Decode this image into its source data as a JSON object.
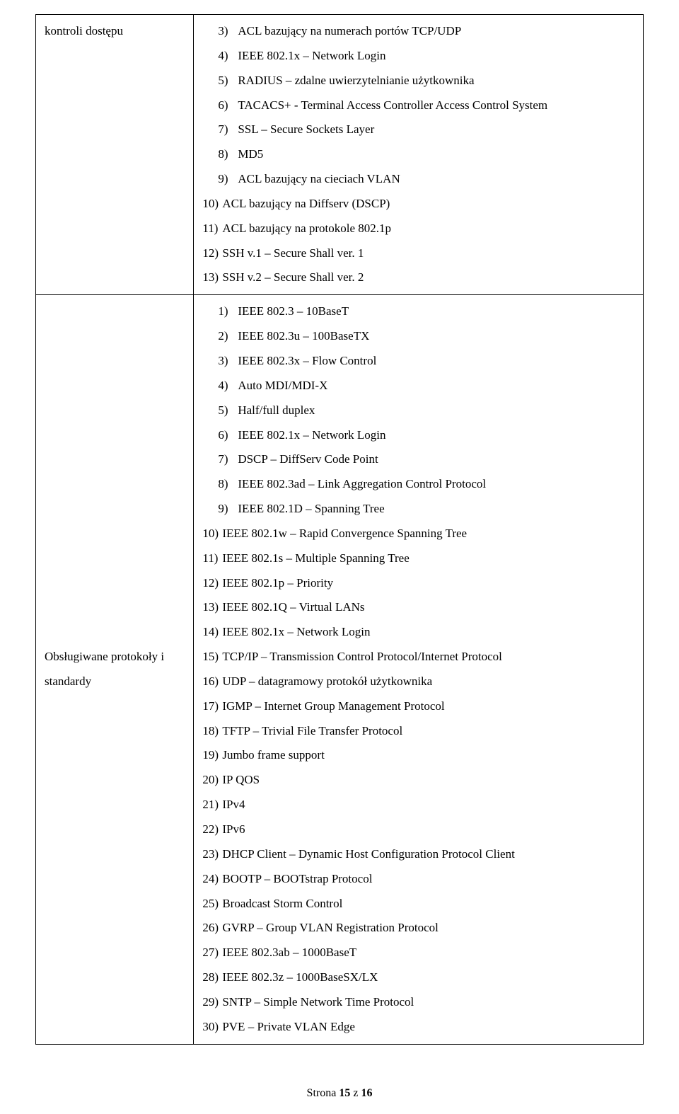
{
  "rows": [
    {
      "label": "kontroli dostępu",
      "items": [
        {
          "num": "3)",
          "text": "ACL bazujący na numerach portów TCP/UDP",
          "indent": true
        },
        {
          "num": "4)",
          "text": "IEEE 802.1x – Network Login",
          "indent": true
        },
        {
          "num": "5)",
          "text": "RADIUS – zdalne uwierzytelnianie użytkownika",
          "indent": true
        },
        {
          "num": "6)",
          "text": "TACACS+ - Terminal Access Controller Access Control System",
          "indent": true
        },
        {
          "num": "7)",
          "text": "SSL – Secure Sockets Layer",
          "indent": true
        },
        {
          "num": "8)",
          "text": "MD5",
          "indent": true
        },
        {
          "num": "9)",
          "text": "ACL bazujący na cieciach VLAN",
          "indent": true
        },
        {
          "num": "10)",
          "text": "ACL bazujący na Diffserv (DSCP)",
          "indent": false
        },
        {
          "num": "11)",
          "text": "ACL bazujący na protokole 802.1p",
          "indent": false
        },
        {
          "num": "12)",
          "text": "SSH v.1 – Secure Shall ver. 1",
          "indent": false
        },
        {
          "num": "13)",
          "text": "SSH v.2 – Secure Shall ver. 2",
          "indent": false
        }
      ],
      "label_align": "top"
    },
    {
      "label": "Obsługiwane protokoły i standardy",
      "items": [
        {
          "num": "1)",
          "text": "IEEE 802.3 – 10BaseT",
          "indent": true
        },
        {
          "num": "2)",
          "text": "IEEE 802.3u – 100BaseTX",
          "indent": true
        },
        {
          "num": "3)",
          "text": "IEEE 802.3x – Flow Control",
          "indent": true
        },
        {
          "num": "4)",
          "text": "Auto MDI/MDI-X",
          "indent": true
        },
        {
          "num": "5)",
          "text": "Half/full duplex",
          "indent": true
        },
        {
          "num": "6)",
          "text": "IEEE 802.1x – Network Login",
          "indent": true
        },
        {
          "num": "7)",
          "text": "DSCP – DiffServ Code Point",
          "indent": true
        },
        {
          "num": "8)",
          "text": "IEEE 802.3ad – Link Aggregation Control Protocol",
          "indent": true
        },
        {
          "num": "9)",
          "text": "IEEE 802.1D – Spanning Tree",
          "indent": true
        },
        {
          "num": "10)",
          "text": "IEEE 802.1w – Rapid Convergence Spanning Tree",
          "indent": false
        },
        {
          "num": "11)",
          "text": "IEEE 802.1s – Multiple Spanning Tree",
          "indent": false
        },
        {
          "num": "12)",
          "text": "IEEE 802.1p – Priority",
          "indent": false
        },
        {
          "num": "13)",
          "text": "IEEE 802.1Q – Virtual LANs",
          "indent": false
        },
        {
          "num": "14)",
          "text": "IEEE 802.1x – Network Login",
          "indent": false
        },
        {
          "num": "15)",
          "text": "TCP/IP – Transmission Control Protocol/Internet Protocol",
          "indent": false
        },
        {
          "num": "16)",
          "text": "UDP – datagramowy protokół użytkownika",
          "indent": false
        },
        {
          "num": "17)",
          "text": "IGMP – Internet Group Management Protocol",
          "indent": false
        },
        {
          "num": "18)",
          "text": "TFTP – Trivial File Transfer Protocol",
          "indent": false
        },
        {
          "num": "19)",
          "text": "Jumbo frame support",
          "indent": false
        },
        {
          "num": "20)",
          "text": "IP QOS",
          "indent": false
        },
        {
          "num": "21)",
          "text": "IPv4",
          "indent": false
        },
        {
          "num": "22)",
          "text": "IPv6",
          "indent": false
        },
        {
          "num": "23)",
          "text": "DHCP Client – Dynamic Host Configuration Protocol Client",
          "indent": false
        },
        {
          "num": "24)",
          "text": "BOOTP – BOOTstrap Protocol",
          "indent": false
        },
        {
          "num": "25)",
          "text": "Broadcast Storm Control",
          "indent": false
        },
        {
          "num": "26)",
          "text": "GVRP – Group VLAN Registration Protocol",
          "indent": false
        },
        {
          "num": "27)",
          "text": "IEEE 802.3ab – 1000BaseT",
          "indent": false
        },
        {
          "num": "28)",
          "text": "IEEE 802.3z – 1000BaseSX/LX",
          "indent": false
        },
        {
          "num": "29)",
          "text": "SNTP – Simple Network Time Protocol",
          "indent": false
        },
        {
          "num": "30)",
          "text": "PVE – Private VLAN Edge",
          "indent": false
        }
      ],
      "label_align": "middle"
    }
  ],
  "footer": {
    "prefix": "Strona ",
    "page": "15",
    "sep": " z ",
    "total": "16"
  }
}
